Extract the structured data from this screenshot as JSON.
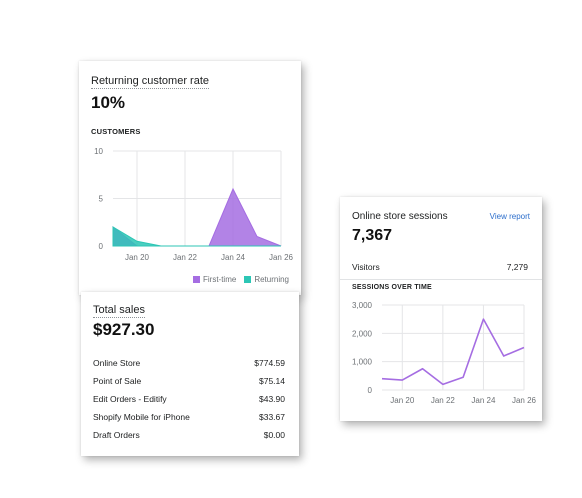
{
  "returning": {
    "title": "Returning customer rate",
    "value": "10%",
    "section_label": "CUSTOMERS",
    "y_ticks": [
      "10",
      "5",
      "0"
    ],
    "x_ticks": [
      "Jan 20",
      "Jan 22",
      "Jan 24",
      "Jan 26"
    ],
    "legend": [
      {
        "label": "First-time",
        "color": "#a56de2"
      },
      {
        "label": "Returning",
        "color": "#2cc6b5"
      }
    ]
  },
  "sales": {
    "title": "Total sales",
    "value": "$927.30",
    "rows": [
      {
        "label": "Online Store",
        "value": "$774.59"
      },
      {
        "label": "Point of Sale",
        "value": "$75.14"
      },
      {
        "label": "Edit Orders - Editify",
        "value": "$43.90"
      },
      {
        "label": "Shopify Mobile for iPhone",
        "value": "$33.67"
      },
      {
        "label": "Draft Orders",
        "value": "$0.00"
      }
    ]
  },
  "sessions": {
    "title": "Online store sessions",
    "view_report": "View report",
    "value": "7,367",
    "visitors_label": "Visitors",
    "visitors_value": "7,279",
    "section_label": "SESSIONS OVER TIME",
    "y_ticks": [
      "3,000",
      "2,000",
      "1,000",
      "0"
    ],
    "x_ticks": [
      "Jan 20",
      "Jan 22",
      "Jan 24",
      "Jan 26"
    ],
    "line_color": "#a56de2"
  },
  "chart_data": [
    {
      "type": "area",
      "ylim": [
        0,
        10
      ],
      "x": [
        "Jan 19",
        "Jan 20",
        "Jan 21",
        "Jan 22",
        "Jan 23",
        "Jan 24",
        "Jan 25",
        "Jan 26"
      ],
      "series": [
        {
          "name": "First-time",
          "values": [
            2,
            0,
            0,
            0,
            0,
            6,
            1,
            0
          ]
        },
        {
          "name": "Returning",
          "values": [
            2,
            0.5,
            0,
            0,
            0,
            0,
            0,
            0
          ]
        }
      ]
    },
    {
      "type": "line",
      "ylim": [
        0,
        3000
      ],
      "x": [
        "Jan 19",
        "Jan 20",
        "Jan 21",
        "Jan 22",
        "Jan 23",
        "Jan 24",
        "Jan 25",
        "Jan 26"
      ],
      "series": [
        {
          "values": [
            400,
            350,
            750,
            200,
            450,
            2500,
            1200,
            1500
          ]
        }
      ]
    }
  ]
}
